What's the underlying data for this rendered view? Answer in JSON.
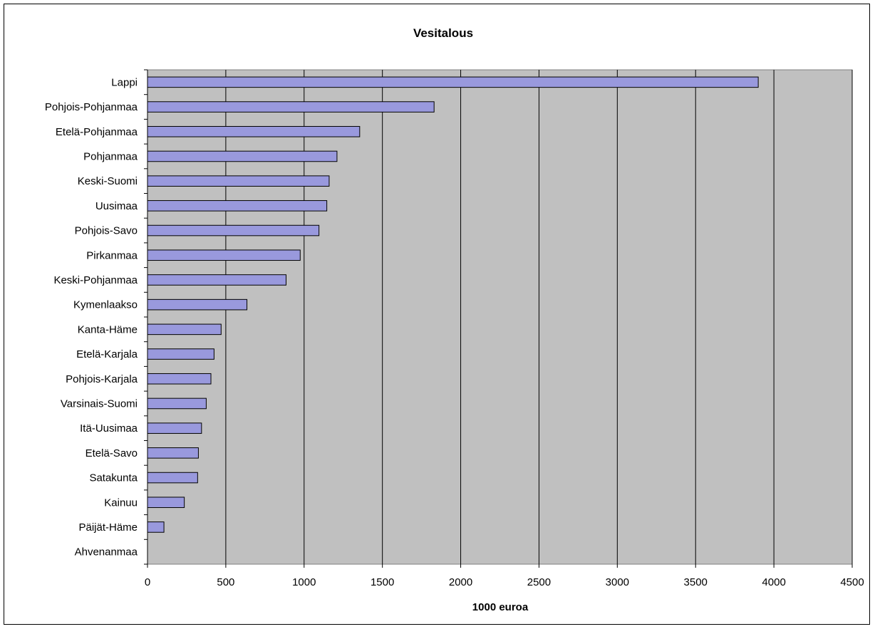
{
  "chart_data": {
    "type": "bar",
    "orientation": "horizontal",
    "title": "Vesitalous",
    "xlabel": "1000 euroa",
    "ylabel": "",
    "xlim": [
      0,
      4500
    ],
    "x_ticks": [
      0,
      500,
      1000,
      1500,
      2000,
      2500,
      3000,
      3500,
      4000,
      4500
    ],
    "grid": "vertical",
    "legend": "none",
    "categories": [
      "Lappi",
      "Pohjois-Pohjanmaa",
      "Etelä-Pohjanmaa",
      "Pohjanmaa",
      "Keski-Suomi",
      "Uusimaa",
      "Pohjois-Savo",
      "Pirkanmaa",
      "Keski-Pohjanmaa",
      "Kymenlaakso",
      "Kanta-Häme",
      "Etelä-Karjala",
      "Pohjois-Karjala",
      "Varsinais-Suomi",
      "Itä-Uusimaa",
      "Etelä-Savo",
      "Satakunta",
      "Kainuu",
      "Päijät-Häme",
      "Ahvenanmaa"
    ],
    "values": [
      3900,
      1830,
      1355,
      1210,
      1160,
      1145,
      1095,
      975,
      885,
      635,
      470,
      425,
      405,
      375,
      345,
      325,
      320,
      235,
      105,
      0
    ],
    "colors": {
      "bar_fill": "#9999dd",
      "bar_stroke": "#000000",
      "plot_background": "#c0c0c0",
      "gridline": "#000000"
    }
  }
}
